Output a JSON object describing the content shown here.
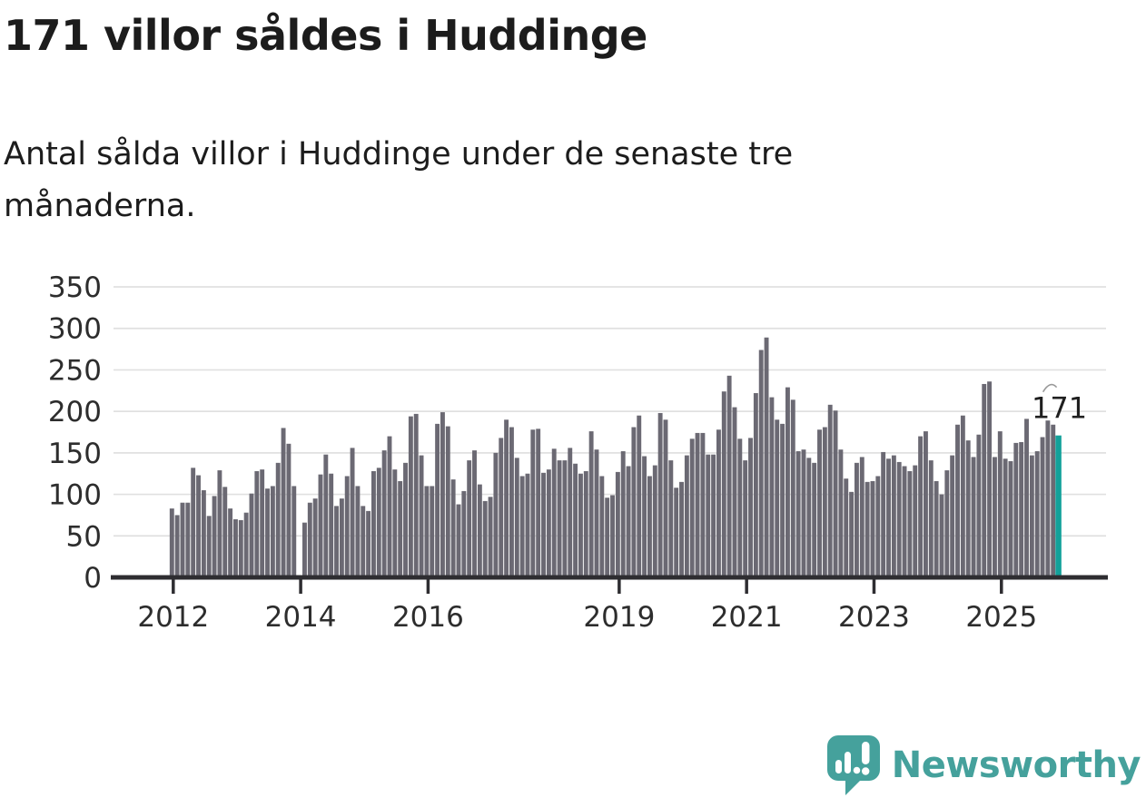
{
  "header": {
    "title": "171 villor såldes i Huddinge",
    "subtitle_line1": "Antal sålda villor i Huddinge under de senaste tre",
    "subtitle_line2": "månaderna."
  },
  "chart_data": {
    "type": "bar",
    "title": "171 villor såldes i Huddinge",
    "subtitle": "Antal sålda villor i Huddinge under de senaste tre månaderna.",
    "x_start": "2012-01",
    "frequency": "monthly",
    "ylabel": "",
    "xlabel": "",
    "ylim": [
      0,
      350
    ],
    "yticks": [
      0,
      50,
      100,
      150,
      200,
      250,
      300,
      350
    ],
    "grid": "horizontal",
    "xticks": [
      {
        "label": "2012",
        "index": 0
      },
      {
        "label": "2014",
        "index": 24
      },
      {
        "label": "2016",
        "index": 48
      },
      {
        "label": "2019",
        "index": 84
      },
      {
        "label": "2021",
        "index": 108
      },
      {
        "label": "2023",
        "index": 132
      },
      {
        "label": "2025",
        "index": 156
      }
    ],
    "values": [
      83,
      75,
      90,
      90,
      132,
      123,
      105,
      74,
      98,
      129,
      109,
      83,
      70,
      69,
      78,
      101,
      128,
      130,
      107,
      110,
      138,
      180,
      161,
      110,
      0,
      66,
      90,
      95,
      124,
      148,
      125,
      86,
      95,
      122,
      156,
      110,
      86,
      80,
      128,
      132,
      153,
      170,
      130,
      116,
      138,
      194,
      197,
      147,
      110,
      110,
      185,
      199,
      182,
      118,
      88,
      104,
      141,
      153,
      112,
      92,
      97,
      150,
      168,
      190,
      181,
      144,
      122,
      125,
      178,
      179,
      126,
      130,
      155,
      141,
      141,
      156,
      137,
      125,
      128,
      176,
      154,
      122,
      96,
      99,
      127,
      152,
      134,
      181,
      195,
      146,
      122,
      135,
      198,
      190,
      141,
      108,
      115,
      147,
      167,
      174,
      174,
      148,
      148,
      178,
      224,
      243,
      205,
      167,
      141,
      168,
      222,
      274,
      289,
      217,
      190,
      185,
      229,
      214,
      152,
      154,
      144,
      138,
      178,
      181,
      208,
      201,
      154,
      119,
      103,
      138,
      145,
      115,
      116,
      122,
      151,
      143,
      147,
      139,
      134,
      128,
      135,
      170,
      176,
      141,
      116,
      100,
      129,
      147,
      184,
      195,
      165,
      145,
      172,
      233,
      236,
      145,
      176,
      143,
      140,
      162,
      163,
      191,
      147,
      152,
      169,
      189,
      184,
      171
    ],
    "highlight_last_value": 171,
    "annotation_label": "171",
    "legend": null,
    "colors": {
      "bar": "#6b6973",
      "highlight": "#12a19a",
      "grid": "#e0e0e0",
      "axis": "#2e2d31",
      "tick_text": "#2d2d2d",
      "annotation_text": "#1f1f1f",
      "leader": "#999999"
    }
  },
  "footer": {
    "brand": "Newsworthy",
    "brand_color": "#45a19c"
  }
}
